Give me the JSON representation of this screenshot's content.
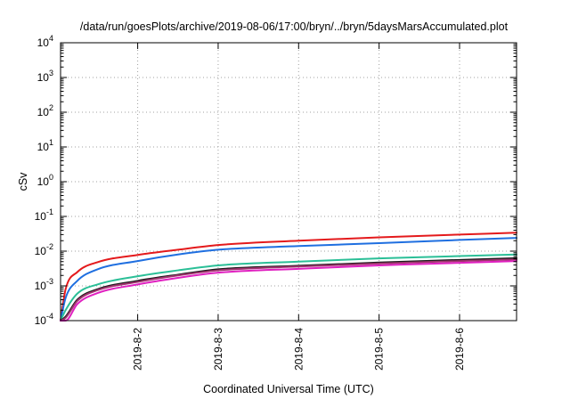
{
  "chart_data": {
    "type": "line",
    "title": "/data/run/goesPlots/archive/2019-08-06/17:00/bryn/../bryn/5daysMarsAccumulated.plot",
    "xlabel": "Coordinated Universal Time (UTC)",
    "ylabel": "cSv",
    "y_scale": "log",
    "ylim": [
      0.0001,
      10000
    ],
    "xlim": [
      "2019-08-01 01:00",
      "2019-08-06 17:00"
    ],
    "y_ticks": [
      {
        "value": 0.0001,
        "base": "10",
        "exp": "-4"
      },
      {
        "value": 0.001,
        "base": "10",
        "exp": "-3"
      },
      {
        "value": 0.01,
        "base": "10",
        "exp": "-2"
      },
      {
        "value": 0.1,
        "base": "10",
        "exp": "-1"
      },
      {
        "value": 1,
        "base": "10",
        "exp": "0"
      },
      {
        "value": 10,
        "base": "10",
        "exp": "1"
      },
      {
        "value": 100,
        "base": "10",
        "exp": "2"
      },
      {
        "value": 1000,
        "base": "10",
        "exp": "3"
      },
      {
        "value": 10000,
        "base": "10",
        "exp": "4"
      }
    ],
    "x_ticks": [
      "2019-8-2",
      "2019-8-3",
      "2019-8-4",
      "2019-8-5",
      "2019-8-6"
    ],
    "grid": true,
    "legend": "none",
    "series": [
      {
        "color": "#e41a1c",
        "x": [
          "2019-08-01 01:00",
          "2019-08-01 02:30",
          "2019-08-01 06:00",
          "2019-08-01 12:00",
          "2019-08-02 00:00",
          "2019-08-02 12:00",
          "2019-08-03 00:00",
          "2019-08-04 00:00",
          "2019-08-05 00:00",
          "2019-08-06 00:00",
          "2019-08-06 17:00"
        ],
        "y": [
          0.0001,
          0.0008,
          0.0025,
          0.0048,
          0.0078,
          0.011,
          0.015,
          0.02,
          0.025,
          0.03,
          0.034
        ]
      },
      {
        "color": "#1f6fe0",
        "x": [
          "2019-08-01 01:00",
          "2019-08-01 02:30",
          "2019-08-01 06:00",
          "2019-08-01 12:00",
          "2019-08-02 00:00",
          "2019-08-02 12:00",
          "2019-08-03 00:00",
          "2019-08-04 00:00",
          "2019-08-05 00:00",
          "2019-08-06 00:00",
          "2019-08-06 17:00"
        ],
        "y": [
          0.0001,
          0.00045,
          0.0014,
          0.003,
          0.0052,
          0.008,
          0.011,
          0.014,
          0.017,
          0.021,
          0.024
        ]
      },
      {
        "color": "#2bbf97",
        "x": [
          "2019-08-01 01:00",
          "2019-08-01 02:30",
          "2019-08-01 06:00",
          "2019-08-01 12:00",
          "2019-08-02 00:00",
          "2019-08-02 12:00",
          "2019-08-03 00:00",
          "2019-08-04 00:00",
          "2019-08-05 00:00",
          "2019-08-06 00:00",
          "2019-08-06 17:00"
        ],
        "y": [
          0.0001,
          0.0002,
          0.0006,
          0.0011,
          0.0019,
          0.0028,
          0.0039,
          0.005,
          0.0062,
          0.0072,
          0.008
        ]
      },
      {
        "color": "#1a1a1a",
        "x": [
          "2019-08-01 01:00",
          "2019-08-01 02:30",
          "2019-08-01 06:00",
          "2019-08-01 12:00",
          "2019-08-02 00:00",
          "2019-08-02 12:00",
          "2019-08-03 00:00",
          "2019-08-04 00:00",
          "2019-08-05 00:00",
          "2019-08-06 00:00",
          "2019-08-06 17:00"
        ],
        "y": [
          0.0001,
          0.00013,
          0.0004,
          0.0008,
          0.0014,
          0.0021,
          0.003,
          0.0038,
          0.0047,
          0.0056,
          0.0063
        ]
      },
      {
        "color": "#a0336e",
        "x": [
          "2019-08-01 01:00",
          "2019-08-01 02:30",
          "2019-08-01 06:00",
          "2019-08-01 12:00",
          "2019-08-02 00:00",
          "2019-08-02 12:00",
          "2019-08-03 00:00",
          "2019-08-04 00:00",
          "2019-08-05 00:00",
          "2019-08-06 00:00",
          "2019-08-06 17:00"
        ],
        "y": [
          0.0001,
          0.00012,
          0.00037,
          0.00075,
          0.0013,
          0.002,
          0.0028,
          0.0036,
          0.0044,
          0.0052,
          0.0058
        ]
      },
      {
        "color": "#e020c0",
        "x": [
          "2019-08-01 01:00",
          "2019-08-01 02:30",
          "2019-08-01 06:00",
          "2019-08-01 12:00",
          "2019-08-02 00:00",
          "2019-08-02 12:00",
          "2019-08-03 00:00",
          "2019-08-04 00:00",
          "2019-08-05 00:00",
          "2019-08-06 00:00",
          "2019-08-06 17:00"
        ],
        "y": [
          0.0001,
          0.0001,
          0.0003,
          0.00062,
          0.0011,
          0.0017,
          0.0024,
          0.0031,
          0.0039,
          0.0046,
          0.0052
        ]
      }
    ]
  }
}
